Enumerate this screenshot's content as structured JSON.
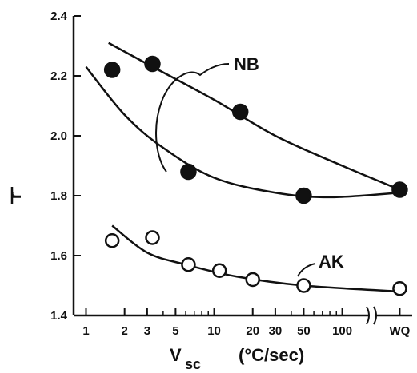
{
  "chart_data": {
    "type": "scatter",
    "xlabel": "V",
    "xlabel_sub": "sc",
    "xlabel_unit": "(°C/sec)",
    "ylabel": "r",
    "x_scale": "log",
    "xlim": [
      0.8,
      300
    ],
    "ylim": [
      1.4,
      2.4
    ],
    "y_ticks": [
      "1.4",
      "1.6",
      "1.8",
      "2.0",
      "2.2",
      "2.4"
    ],
    "x_ticks": [
      {
        "value": 1,
        "label": "1"
      },
      {
        "value": 2,
        "label": "2"
      },
      {
        "value": 3,
        "label": "3"
      },
      {
        "value": 5,
        "label": "5"
      },
      {
        "value": 10,
        "label": "10"
      },
      {
        "value": 20,
        "label": "20"
      },
      {
        "value": 30,
        "label": "30"
      },
      {
        "value": 50,
        "label": "50"
      },
      {
        "value": 100,
        "label": "100"
      },
      {
        "value": 250,
        "label": "WQ"
      }
    ],
    "axis_break_at": 150,
    "series": [
      {
        "name": "NB",
        "marker": "filled-circle",
        "points": [
          {
            "x": 1.6,
            "y": 2.22
          },
          {
            "x": 3.3,
            "y": 2.24
          },
          {
            "x": 6.3,
            "y": 1.88
          },
          {
            "x": 16,
            "y": 2.08
          },
          {
            "x": 50,
            "y": 1.8
          },
          {
            "x": 250,
            "y": 1.82
          }
        ],
        "curves": [
          [
            {
              "x": 1.5,
              "y": 2.31
            },
            {
              "x": 3,
              "y": 2.24
            },
            {
              "x": 10,
              "y": 2.12
            },
            {
              "x": 30,
              "y": 2.0
            },
            {
              "x": 100,
              "y": 1.9
            },
            {
              "x": 250,
              "y": 1.82
            }
          ],
          [
            {
              "x": 1.0,
              "y": 2.23
            },
            {
              "x": 2,
              "y": 2.07
            },
            {
              "x": 4,
              "y": 1.96
            },
            {
              "x": 10,
              "y": 1.86
            },
            {
              "x": 30,
              "y": 1.81
            },
            {
              "x": 80,
              "y": 1.795
            },
            {
              "x": 250,
              "y": 1.81
            }
          ]
        ]
      },
      {
        "name": "AK",
        "marker": "open-circle",
        "points": [
          {
            "x": 1.6,
            "y": 1.65
          },
          {
            "x": 3.3,
            "y": 1.66
          },
          {
            "x": 6.3,
            "y": 1.57
          },
          {
            "x": 11,
            "y": 1.55
          },
          {
            "x": 20,
            "y": 1.52
          },
          {
            "x": 50,
            "y": 1.5
          },
          {
            "x": 250,
            "y": 1.49
          }
        ],
        "curves": [
          [
            {
              "x": 1.6,
              "y": 1.7
            },
            {
              "x": 3,
              "y": 1.61
            },
            {
              "x": 6,
              "y": 1.57
            },
            {
              "x": 15,
              "y": 1.53
            },
            {
              "x": 50,
              "y": 1.5
            },
            {
              "x": 250,
              "y": 1.48
            }
          ]
        ]
      }
    ]
  }
}
